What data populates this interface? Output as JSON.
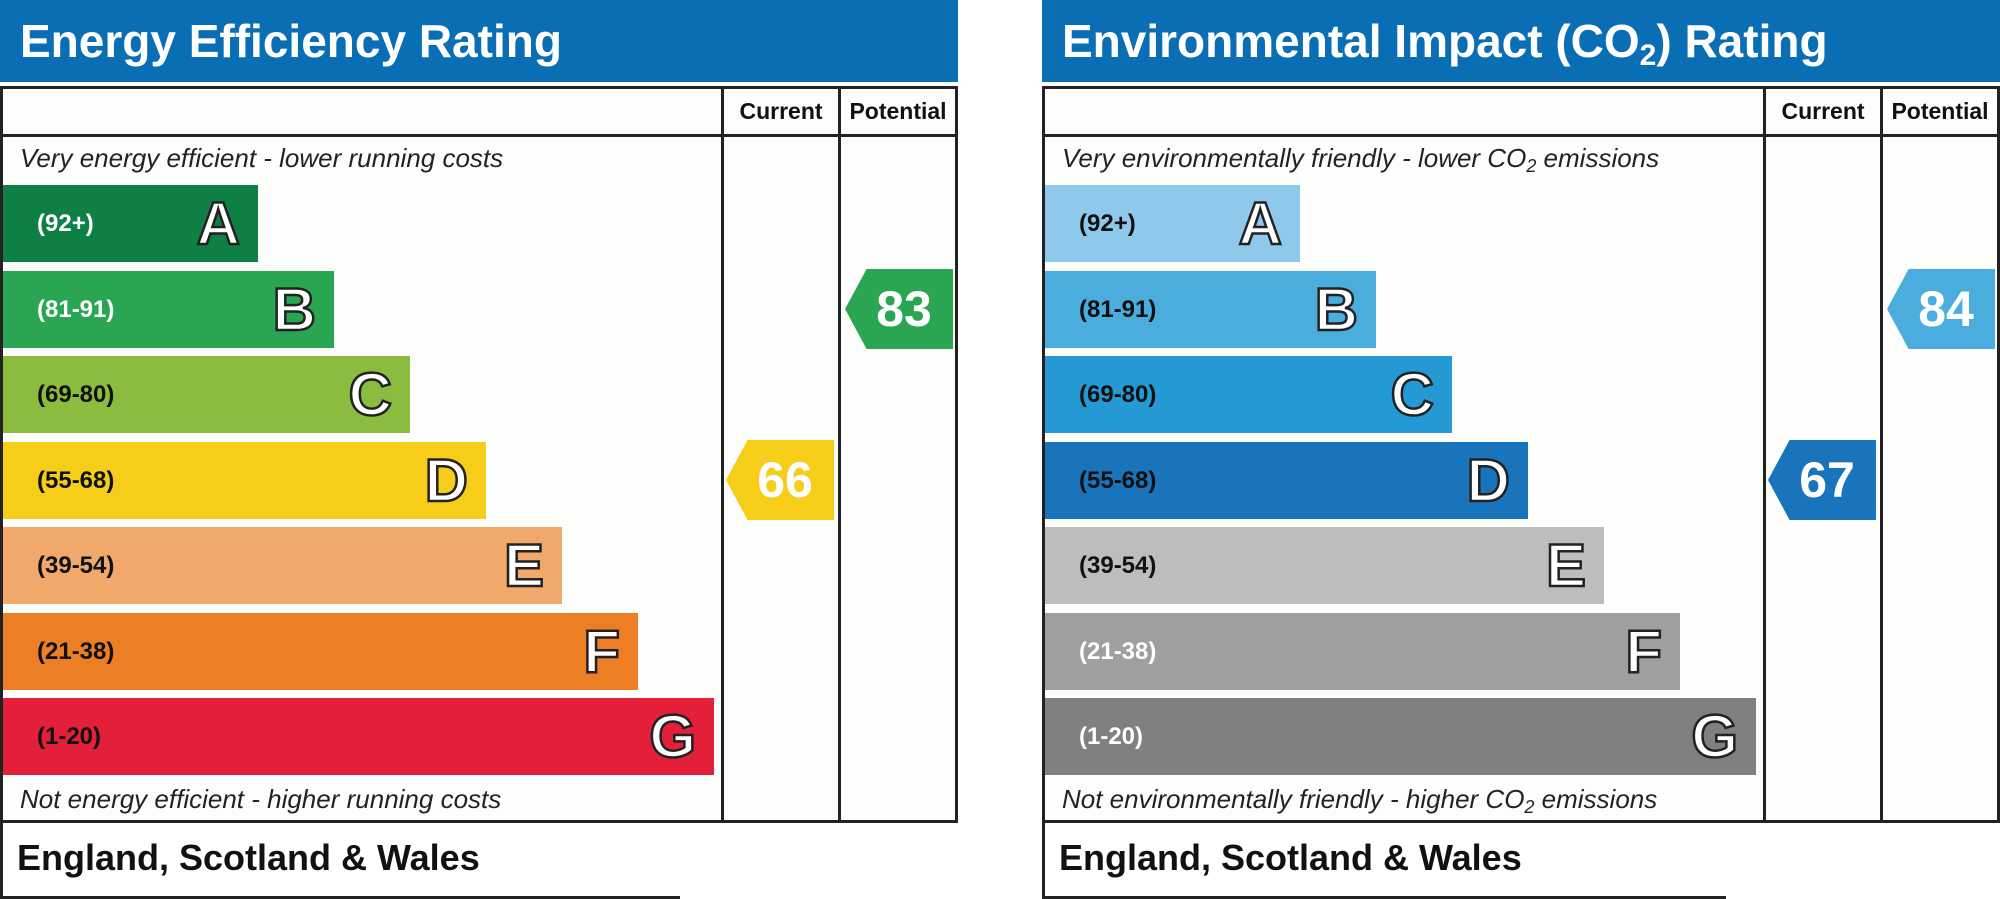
{
  "chart_data": [
    {
      "type": "table",
      "title": "Energy Efficiency Rating",
      "columns": [
        "Current",
        "Potential"
      ],
      "top_caption": "Very energy efficient - lower running costs",
      "bottom_caption": "Not energy efficient - higher running costs",
      "footer": "England, Scotland & Wales",
      "bands": [
        {
          "range": "(92+)",
          "letter": "A",
          "color": "#0e8046",
          "text_color": "#ffffff"
        },
        {
          "range": "(81-91)",
          "letter": "B",
          "color": "#2aa653",
          "text_color": "#ffffff"
        },
        {
          "range": "(69-80)",
          "letter": "C",
          "color": "#8cbc3f",
          "text_color": "#111111"
        },
        {
          "range": "(55-68)",
          "letter": "D",
          "color": "#f6cd18",
          "text_color": "#111111"
        },
        {
          "range": "(39-54)",
          "letter": "E",
          "color": "#f1a86b",
          "text_color": "#111111"
        },
        {
          "range": "(21-38)",
          "letter": "F",
          "color": "#ec7e25",
          "text_color": "#111111"
        },
        {
          "range": "(1-20)",
          "letter": "G",
          "color": "#e41f3a",
          "text_color": "#111111"
        }
      ],
      "current": {
        "value": 66,
        "band": "D",
        "color": "#f6cd18"
      },
      "potential": {
        "value": 83,
        "band": "B",
        "color": "#2aa653"
      }
    },
    {
      "type": "table",
      "title_parts": [
        "Environmental Impact (CO",
        "2",
        ") Rating"
      ],
      "columns": [
        "Current",
        "Potential"
      ],
      "top_caption_parts": [
        "Very environmentally friendly - lower CO",
        "2",
        " emissions"
      ],
      "bottom_caption_parts": [
        "Not environmentally friendly - higher CO",
        "2",
        " emissions"
      ],
      "footer": "England, Scotland & Wales",
      "bands": [
        {
          "range": "(92+)",
          "letter": "A",
          "color": "#8ec9ec",
          "text_color": "#111111"
        },
        {
          "range": "(81-91)",
          "letter": "B",
          "color": "#4badde",
          "text_color": "#111111"
        },
        {
          "range": "(69-80)",
          "letter": "C",
          "color": "#2499d3",
          "text_color": "#111111"
        },
        {
          "range": "(55-68)",
          "letter": "D",
          "color": "#1a74bb",
          "text_color": "#111111"
        },
        {
          "range": "(39-54)",
          "letter": "E",
          "color": "#bdbdbb",
          "text_color": "#111111"
        },
        {
          "range": "(21-38)",
          "letter": "F",
          "color": "#9f9f9f",
          "text_color": "#ffffff"
        },
        {
          "range": "(1-20)",
          "letter": "G",
          "color": "#808080",
          "text_color": "#ffffff"
        }
      ],
      "current": {
        "value": 67,
        "band": "D",
        "color": "#1a74bb"
      },
      "potential": {
        "value": 84,
        "band": "B",
        "color": "#4badde"
      }
    }
  ]
}
